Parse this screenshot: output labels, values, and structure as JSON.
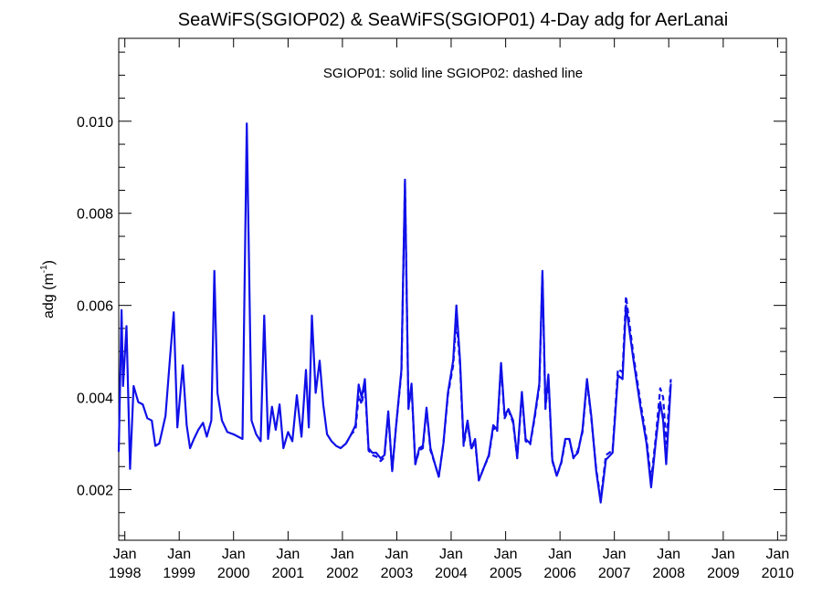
{
  "chart_data": {
    "type": "line",
    "title": "SeaWiFS(SGIOP02) & SeaWiFS(SGIOP01) 4-Day adg for AerLanai",
    "xlabel": "",
    "ylabel": "adg (m",
    "ylabel_sup": "-1",
    "ylabel_close": ")",
    "annotation": "SGIOP01: solid line   SGIOP02: dashed line",
    "xlim": [
      "1997-11-21",
      "2010-03-01"
    ],
    "ylim": [
      0.0009,
      0.0118
    ],
    "yticks": [
      {
        "value": 0.002,
        "label": "0.002"
      },
      {
        "value": 0.004,
        "label": "0.004"
      },
      {
        "value": 0.006,
        "label": "0.006"
      },
      {
        "value": 0.008,
        "label": "0.008"
      },
      {
        "value": 0.01,
        "label": "0.010"
      }
    ],
    "xticks": [
      {
        "date": "1998-01-01",
        "month": "Jan",
        "year": "1998"
      },
      {
        "date": "1999-01-01",
        "month": "Jan",
        "year": "1999"
      },
      {
        "date": "2000-01-01",
        "month": "Jan",
        "year": "2000"
      },
      {
        "date": "2001-01-01",
        "month": "Jan",
        "year": "2001"
      },
      {
        "date": "2002-01-01",
        "month": "Jan",
        "year": "2002"
      },
      {
        "date": "2003-01-01",
        "month": "Jan",
        "year": "2003"
      },
      {
        "date": "2004-01-01",
        "month": "Jan",
        "year": "2004"
      },
      {
        "date": "2005-01-01",
        "month": "Jan",
        "year": "2005"
      },
      {
        "date": "2006-01-01",
        "month": "Jan",
        "year": "2006"
      },
      {
        "date": "2007-01-01",
        "month": "Jan",
        "year": "2007"
      },
      {
        "date": "2008-01-01",
        "month": "Jan",
        "year": "2008"
      },
      {
        "date": "2009-01-01",
        "month": "Jan",
        "year": "2009"
      },
      {
        "date": "2010-01-01",
        "month": "Jan",
        "year": "2010"
      }
    ],
    "grid": false,
    "line_color": "#1010e8",
    "series": [
      {
        "name": "SGIOP01",
        "style": "solid",
        "points": [
          [
            "1997-11-21",
            0.00282
          ],
          [
            "1997-12-10",
            0.0059
          ],
          [
            "1997-12-20",
            0.00425
          ],
          [
            "1998-01-12",
            0.00555
          ],
          [
            "1998-02-05",
            0.00245
          ],
          [
            "1998-03-01",
            0.00425
          ],
          [
            "1998-04-01",
            0.0039
          ],
          [
            "1998-05-01",
            0.00385
          ],
          [
            "1998-06-01",
            0.00355
          ],
          [
            "1998-07-01",
            0.0035
          ],
          [
            "1998-07-25",
            0.00295
          ],
          [
            "1998-08-20",
            0.003
          ],
          [
            "1998-10-01",
            0.0036
          ],
          [
            "1998-11-01",
            0.0049
          ],
          [
            "1998-11-25",
            0.00585
          ],
          [
            "1998-12-20",
            0.00335
          ],
          [
            "1999-01-25",
            0.0047
          ],
          [
            "1999-02-20",
            0.0034
          ],
          [
            "1999-03-15",
            0.0029
          ],
          [
            "1999-04-10",
            0.0031
          ],
          [
            "1999-05-10",
            0.0033
          ],
          [
            "1999-06-10",
            0.00345
          ],
          [
            "1999-07-05",
            0.00315
          ],
          [
            "1999-08-05",
            0.0035
          ],
          [
            "1999-08-25",
            0.00675
          ],
          [
            "1999-09-15",
            0.0041
          ],
          [
            "1999-10-15",
            0.0035
          ],
          [
            "1999-11-20",
            0.00325
          ],
          [
            "2000-01-01",
            0.0032
          ],
          [
            "2000-03-01",
            0.0031
          ],
          [
            "2000-03-30",
            0.00995
          ],
          [
            "2000-05-01",
            0.0035
          ],
          [
            "2000-06-01",
            0.0032
          ],
          [
            "2000-07-01",
            0.00305
          ],
          [
            "2000-07-25",
            0.00578
          ],
          [
            "2000-08-20",
            0.0031
          ],
          [
            "2000-09-15",
            0.0038
          ],
          [
            "2000-10-10",
            0.0033
          ],
          [
            "2000-11-05",
            0.00385
          ],
          [
            "2000-12-01",
            0.0029
          ],
          [
            "2001-01-01",
            0.00325
          ],
          [
            "2001-01-30",
            0.00305
          ],
          [
            "2001-03-01",
            0.00405
          ],
          [
            "2001-04-01",
            0.00315
          ],
          [
            "2001-05-01",
            0.0046
          ],
          [
            "2001-05-20",
            0.00335
          ],
          [
            "2001-06-10",
            0.00578
          ],
          [
            "2001-07-05",
            0.0041
          ],
          [
            "2001-08-01",
            0.0048
          ],
          [
            "2001-08-25",
            0.00385
          ],
          [
            "2001-09-20",
            0.0032
          ],
          [
            "2001-10-20",
            0.00305
          ],
          [
            "2001-11-20",
            0.00295
          ],
          [
            "2001-12-20",
            0.0029
          ],
          [
            "2002-01-25",
            0.003
          ],
          [
            "2002-03-01",
            0.0032
          ],
          [
            "2002-03-30",
            0.0034
          ],
          [
            "2002-04-20",
            0.00428
          ],
          [
            "2002-05-10",
            0.004
          ],
          [
            "2002-06-01",
            0.0044
          ],
          [
            "2002-06-25",
            0.0029
          ],
          [
            "2002-07-20",
            0.0028
          ],
          [
            "2002-08-15",
            0.0028
          ],
          [
            "2002-09-15",
            0.00268
          ],
          [
            "2002-10-10",
            0.00275
          ],
          [
            "2002-11-05",
            0.0037
          ],
          [
            "2002-12-01",
            0.0024
          ],
          [
            "2002-12-25",
            0.0033
          ],
          [
            "2003-02-01",
            0.0046
          ],
          [
            "2003-02-25",
            0.00873
          ],
          [
            "2003-03-20",
            0.00378
          ],
          [
            "2003-04-10",
            0.0043
          ],
          [
            "2003-05-05",
            0.00255
          ],
          [
            "2003-06-01",
            0.0029
          ],
          [
            "2003-06-25",
            0.00295
          ],
          [
            "2003-07-20",
            0.00378
          ],
          [
            "2003-08-15",
            0.0029
          ],
          [
            "2003-09-15",
            0.00255
          ],
          [
            "2003-10-10",
            0.00228
          ],
          [
            "2003-11-10",
            0.003
          ],
          [
            "2003-12-10",
            0.0041
          ],
          [
            "2004-01-15",
            0.0048
          ],
          [
            "2004-02-05",
            0.006
          ],
          [
            "2004-03-01",
            0.0048
          ],
          [
            "2004-03-25",
            0.003
          ],
          [
            "2004-04-20",
            0.0035
          ],
          [
            "2004-05-15",
            0.0029
          ],
          [
            "2004-06-10",
            0.0031
          ],
          [
            "2004-07-05",
            0.0022
          ],
          [
            "2004-08-10",
            0.0025
          ],
          [
            "2004-09-10",
            0.00275
          ],
          [
            "2004-10-10",
            0.0034
          ],
          [
            "2004-11-05",
            0.0033
          ],
          [
            "2004-12-01",
            0.00475
          ],
          [
            "2004-12-25",
            0.0036
          ],
          [
            "2005-01-20",
            0.00375
          ],
          [
            "2005-02-20",
            0.0035
          ],
          [
            "2005-03-20",
            0.0027
          ],
          [
            "2005-04-20",
            0.00412
          ],
          [
            "2005-05-15",
            0.0031
          ],
          [
            "2005-06-15",
            0.003
          ],
          [
            "2005-07-15",
            0.0036
          ],
          [
            "2005-08-15",
            0.0043
          ],
          [
            "2005-09-05",
            0.00675
          ],
          [
            "2005-09-25",
            0.0038
          ],
          [
            "2005-10-15",
            0.0045
          ],
          [
            "2005-11-10",
            0.00265
          ],
          [
            "2005-12-10",
            0.0023
          ],
          [
            "2006-01-10",
            0.0026
          ],
          [
            "2006-02-05",
            0.0031
          ],
          [
            "2006-03-05",
            0.0031
          ],
          [
            "2006-04-01",
            0.0027
          ],
          [
            "2006-05-01",
            0.0028
          ],
          [
            "2006-06-01",
            0.0033
          ],
          [
            "2006-07-01",
            0.0044
          ],
          [
            "2006-07-30",
            0.0036
          ],
          [
            "2006-09-01",
            0.0024
          ],
          [
            "2006-10-01",
            0.00172
          ],
          [
            "2006-11-05",
            0.00265
          ],
          [
            "2006-12-20",
            0.0028
          ],
          [
            "2007-01-25",
            0.00448
          ],
          [
            "2007-02-25",
            0.0044
          ],
          [
            "2007-03-20",
            0.006
          ],
          [
            "2007-05-10",
            0.0048
          ],
          [
            "2007-06-25",
            0.0038
          ],
          [
            "2007-08-05",
            0.003
          ],
          [
            "2007-09-05",
            0.00205
          ],
          [
            "2007-10-05",
            0.003
          ],
          [
            "2007-11-05",
            0.0039
          ],
          [
            "2007-11-25",
            0.0035
          ],
          [
            "2007-12-15",
            0.00255
          ],
          [
            "2008-01-15",
            0.0043
          ]
        ]
      },
      {
        "name": "SGIOP02",
        "style": "dashed",
        "points": [
          [
            "2002-01-25",
            0.003
          ],
          [
            "2002-03-01",
            0.0032
          ],
          [
            "2002-03-30",
            0.0033
          ],
          [
            "2002-04-20",
            0.00405
          ],
          [
            "2002-05-10",
            0.00385
          ],
          [
            "2002-06-01",
            0.0043
          ],
          [
            "2002-06-25",
            0.00285
          ],
          [
            "2002-07-20",
            0.00275
          ],
          [
            "2002-08-15",
            0.00272
          ],
          [
            "2002-09-15",
            0.00262
          ],
          [
            "2002-10-10",
            0.0027
          ],
          [
            "2002-11-05",
            0.00365
          ],
          [
            "2002-12-01",
            0.0024
          ],
          [
            "2002-12-25",
            0.0033
          ],
          [
            "2003-02-01",
            0.00455
          ],
          [
            "2003-02-25",
            0.00865
          ],
          [
            "2003-03-20",
            0.00375
          ],
          [
            "2003-04-10",
            0.00425
          ],
          [
            "2003-05-05",
            0.00255
          ],
          [
            "2003-06-01",
            0.00285
          ],
          [
            "2003-06-25",
            0.0029
          ],
          [
            "2003-07-20",
            0.00375
          ],
          [
            "2003-08-15",
            0.00285
          ],
          [
            "2003-09-15",
            0.00255
          ],
          [
            "2003-10-10",
            0.00228
          ],
          [
            "2003-11-10",
            0.003
          ],
          [
            "2003-12-10",
            0.00405
          ],
          [
            "2004-01-15",
            0.0047
          ],
          [
            "2004-02-05",
            0.0057
          ],
          [
            "2004-03-01",
            0.0047
          ],
          [
            "2004-03-25",
            0.00295
          ],
          [
            "2004-04-20",
            0.00345
          ],
          [
            "2004-05-15",
            0.00288
          ],
          [
            "2004-06-10",
            0.00305
          ],
          [
            "2004-07-05",
            0.0022
          ],
          [
            "2004-08-10",
            0.0025
          ],
          [
            "2004-09-10",
            0.00272
          ],
          [
            "2004-10-10",
            0.00335
          ],
          [
            "2004-11-05",
            0.00325
          ],
          [
            "2004-12-01",
            0.0047
          ],
          [
            "2004-12-25",
            0.00355
          ],
          [
            "2005-01-20",
            0.00372
          ],
          [
            "2005-02-20",
            0.00345
          ],
          [
            "2005-03-20",
            0.00268
          ],
          [
            "2005-04-20",
            0.00405
          ],
          [
            "2005-05-15",
            0.00305
          ],
          [
            "2005-06-15",
            0.00298
          ],
          [
            "2005-07-15",
            0.00355
          ],
          [
            "2005-08-15",
            0.00425
          ],
          [
            "2005-09-05",
            0.00665
          ],
          [
            "2005-09-25",
            0.00375
          ],
          [
            "2005-10-15",
            0.00445
          ],
          [
            "2005-11-10",
            0.00262
          ],
          [
            "2005-12-10",
            0.0023
          ],
          [
            "2006-01-10",
            0.00258
          ],
          [
            "2006-02-05",
            0.00305
          ],
          [
            "2006-03-05",
            0.0031
          ],
          [
            "2006-04-01",
            0.00268
          ],
          [
            "2006-05-01",
            0.00285
          ],
          [
            "2006-06-01",
            0.00325
          ],
          [
            "2006-07-01",
            0.00435
          ],
          [
            "2006-07-30",
            0.00355
          ],
          [
            "2006-09-01",
            0.00245
          ],
          [
            "2006-10-01",
            0.00178
          ],
          [
            "2006-11-05",
            0.00275
          ],
          [
            "2006-12-20",
            0.00285
          ],
          [
            "2007-01-25",
            0.00462
          ],
          [
            "2007-02-25",
            0.00455
          ],
          [
            "2007-03-20",
            0.0062
          ],
          [
            "2007-05-10",
            0.0049
          ],
          [
            "2007-06-25",
            0.0039
          ],
          [
            "2007-08-05",
            0.0031
          ],
          [
            "2007-09-05",
            0.0022
          ],
          [
            "2007-10-05",
            0.0031
          ],
          [
            "2007-11-05",
            0.0042
          ],
          [
            "2007-11-25",
            0.004
          ],
          [
            "2007-12-15",
            0.003
          ],
          [
            "2008-01-15",
            0.0044
          ]
        ]
      }
    ]
  }
}
